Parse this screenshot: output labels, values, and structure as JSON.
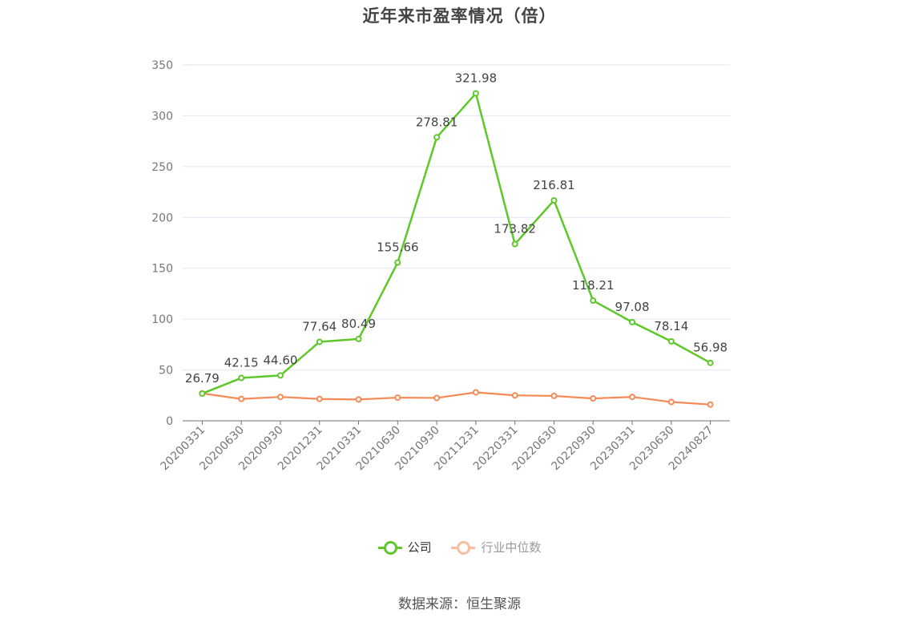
{
  "chart_data": {
    "type": "line",
    "title": "近年来市盈率情况（倍）",
    "categories": [
      "20200331",
      "20200630",
      "20200930",
      "20201231",
      "20210331",
      "20210630",
      "20210930",
      "20211231",
      "20220331",
      "20220630",
      "20220930",
      "20230331",
      "20230630",
      "20240827"
    ],
    "series": [
      {
        "name": "公司",
        "color": "#5ec82a",
        "values": [
          26.79,
          42.15,
          44.6,
          77.64,
          80.49,
          155.66,
          278.81,
          321.98,
          173.82,
          216.81,
          118.21,
          97.08,
          78.14,
          56.98
        ],
        "labels": [
          "26.79",
          "42.15",
          "44.60",
          "77.64",
          "80.49",
          "155.66",
          "278.81",
          "321.98",
          "173.82",
          "216.81",
          "118.21",
          "97.08",
          "78.14",
          "56.98"
        ]
      },
      {
        "name": "行业中位数",
        "color": "#f58a56",
        "values": [
          27.0,
          21.5,
          23.5,
          21.5,
          21.0,
          22.8,
          22.5,
          28.0,
          25.0,
          24.5,
          22.0,
          23.5,
          18.5,
          16.0
        ]
      }
    ],
    "yticks": [
      "0",
      "50",
      "100",
      "150",
      "200",
      "250",
      "300",
      "350"
    ],
    "ylim": [
      0,
      350
    ],
    "grid": true,
    "legend_position": "bottom"
  },
  "source": "数据来源：恒生聚源"
}
